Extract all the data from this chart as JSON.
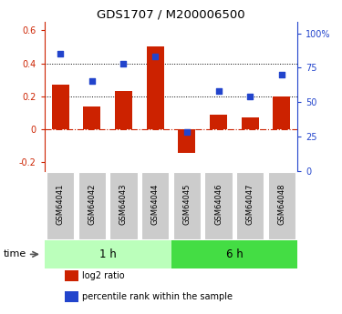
{
  "title": "GDS1707 / M200006500",
  "samples": [
    "GSM64041",
    "GSM64042",
    "GSM64043",
    "GSM64044",
    "GSM64045",
    "GSM64046",
    "GSM64047",
    "GSM64048"
  ],
  "log2_ratio": [
    0.27,
    0.14,
    0.23,
    0.5,
    -0.14,
    0.09,
    0.07,
    0.2
  ],
  "percentile_rank": [
    85,
    65,
    78,
    83,
    28,
    58,
    54,
    70
  ],
  "groups": [
    {
      "label": "1 h",
      "start": 0,
      "end": 4
    },
    {
      "label": "6 h",
      "start": 4,
      "end": 8
    }
  ],
  "bar_color": "#cc2200",
  "dot_color": "#2244cc",
  "ylim_left": [
    -0.25,
    0.65
  ],
  "ylim_right": [
    0,
    108.33
  ],
  "yticks_left": [
    -0.2,
    0.0,
    0.2,
    0.4,
    0.6
  ],
  "yticks_right": [
    0,
    25,
    50,
    75,
    100
  ],
  "ytick_labels_left": [
    "-0.2",
    "0",
    "0.2",
    "0.4",
    "0.6"
  ],
  "ytick_labels_right": [
    "0",
    "25",
    "50",
    "75",
    "100%"
  ],
  "hlines": [
    0.4,
    0.2
  ],
  "time_label": "time",
  "legend_labels": [
    "log2 ratio",
    "percentile rank within the sample"
  ],
  "legend_colors": [
    "#cc2200",
    "#2244cc"
  ],
  "background_color": "#ffffff",
  "label_bg_color": "#cccccc",
  "group1_color": "#bbffbb",
  "group2_color": "#44dd44"
}
